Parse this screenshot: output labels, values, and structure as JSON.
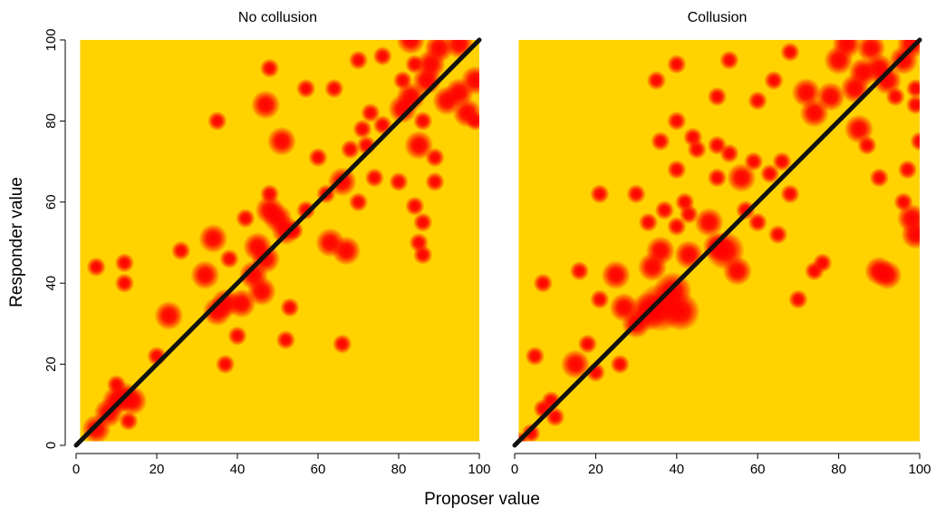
{
  "chart_data": {
    "type": "heatmap",
    "xlabel": "Proposer value",
    "ylabel": "Responder value",
    "xlim": [
      0,
      100
    ],
    "ylim": [
      0,
      100
    ],
    "x_ticks": [
      "0",
      "20",
      "40",
      "60",
      "80",
      "100"
    ],
    "y_ticks": [
      "0",
      "20",
      "40",
      "60",
      "80",
      "100"
    ],
    "colors": {
      "background": "#FFD200",
      "high_density": "#FF0000",
      "diagonal": "#111111"
    },
    "reference_line": {
      "from": [
        0,
        0
      ],
      "to": [
        100,
        100
      ]
    },
    "panels": [
      {
        "title": "No collusion",
        "hotspots": [
          [
            5,
            4,
            3
          ],
          [
            8,
            8,
            3
          ],
          [
            10,
            11,
            3
          ],
          [
            12,
            12,
            3
          ],
          [
            10,
            15,
            2
          ],
          [
            14,
            11,
            3
          ],
          [
            13,
            6,
            2
          ],
          [
            20,
            22,
            2
          ],
          [
            23,
            32,
            3
          ],
          [
            5,
            44,
            2
          ],
          [
            12,
            45,
            2
          ],
          [
            12,
            40,
            2
          ],
          [
            26,
            48,
            2
          ],
          [
            32,
            42,
            3
          ],
          [
            34,
            51,
            3
          ],
          [
            37,
            35,
            3
          ],
          [
            35,
            33,
            3
          ],
          [
            38,
            46,
            2
          ],
          [
            41,
            35,
            3
          ],
          [
            44,
            42,
            3
          ],
          [
            45,
            49,
            3
          ],
          [
            47,
            46,
            3
          ],
          [
            46,
            38,
            3
          ],
          [
            50,
            56,
            3
          ],
          [
            52,
            53,
            3
          ],
          [
            48,
            58,
            3
          ],
          [
            48,
            62,
            2
          ],
          [
            54,
            53,
            2
          ],
          [
            57,
            58,
            2
          ],
          [
            53,
            34,
            2
          ],
          [
            52,
            26,
            2
          ],
          [
            37,
            20,
            2
          ],
          [
            40,
            27,
            2
          ],
          [
            66,
            25,
            2
          ],
          [
            63,
            50,
            3
          ],
          [
            67,
            48,
            3
          ],
          [
            66,
            65,
            3
          ],
          [
            68,
            73,
            2
          ],
          [
            71,
            78,
            2
          ],
          [
            73,
            82,
            2
          ],
          [
            72,
            74,
            2
          ],
          [
            47,
            84,
            3
          ],
          [
            51,
            75,
            3
          ],
          [
            35,
            80,
            2
          ],
          [
            48,
            93,
            2
          ],
          [
            57,
            88,
            2
          ],
          [
            64,
            88,
            2
          ],
          [
            60,
            71,
            2
          ],
          [
            74,
            66,
            2
          ],
          [
            76,
            79,
            2
          ],
          [
            81,
            90,
            2
          ],
          [
            81,
            83,
            3
          ],
          [
            83,
            86,
            3
          ],
          [
            85,
            74,
            3
          ],
          [
            86,
            80,
            2
          ],
          [
            84,
            94,
            2
          ],
          [
            87,
            90,
            3
          ],
          [
            88,
            94,
            3
          ],
          [
            90,
            98,
            3
          ],
          [
            92,
            85,
            3
          ],
          [
            95,
            87,
            3
          ],
          [
            97,
            82,
            3
          ],
          [
            99,
            90,
            3
          ],
          [
            99,
            80,
            2
          ],
          [
            95,
            99,
            3
          ],
          [
            83,
            100,
            3
          ],
          [
            76,
            96,
            2
          ],
          [
            70,
            95,
            2
          ],
          [
            80,
            65,
            2
          ],
          [
            89,
            71,
            2
          ],
          [
            84,
            59,
            2
          ],
          [
            86,
            55,
            2
          ],
          [
            89,
            65,
            2
          ],
          [
            85,
            50,
            2
          ],
          [
            86,
            47,
            2
          ],
          [
            62,
            62,
            2
          ],
          [
            70,
            60,
            2
          ],
          [
            42,
            56,
            2
          ]
        ]
      },
      {
        "title": "Collusion",
        "hotspots": [
          [
            1,
            1,
            2
          ],
          [
            4,
            3,
            2
          ],
          [
            7,
            9,
            2
          ],
          [
            9,
            11,
            2
          ],
          [
            10,
            7,
            2
          ],
          [
            5,
            22,
            2
          ],
          [
            7,
            40,
            2
          ],
          [
            15,
            20,
            3
          ],
          [
            18,
            25,
            2
          ],
          [
            16,
            43,
            2
          ],
          [
            21,
            36,
            2
          ],
          [
            25,
            42,
            3
          ],
          [
            27,
            34,
            3
          ],
          [
            30,
            30,
            3
          ],
          [
            33,
            33,
            4
          ],
          [
            36,
            34,
            5
          ],
          [
            39,
            38,
            4
          ],
          [
            41,
            33,
            4
          ],
          [
            34,
            44,
            3
          ],
          [
            36,
            48,
            3
          ],
          [
            40,
            54,
            2
          ],
          [
            42,
            60,
            2
          ],
          [
            43,
            47,
            3
          ],
          [
            33,
            55,
            2
          ],
          [
            37,
            58,
            2
          ],
          [
            40,
            68,
            2
          ],
          [
            50,
            49,
            3
          ],
          [
            52,
            48,
            4
          ],
          [
            55,
            43,
            3
          ],
          [
            48,
            55,
            3
          ],
          [
            57,
            58,
            2
          ],
          [
            60,
            55,
            2
          ],
          [
            50,
            66,
            2
          ],
          [
            56,
            66,
            3
          ],
          [
            59,
            70,
            2
          ],
          [
            63,
            67,
            2
          ],
          [
            66,
            70,
            2
          ],
          [
            68,
            62,
            2
          ],
          [
            65,
            52,
            2
          ],
          [
            53,
            72,
            2
          ],
          [
            50,
            74,
            2
          ],
          [
            45,
            73,
            2
          ],
          [
            30,
            62,
            2
          ],
          [
            21,
            62,
            2
          ],
          [
            36,
            75,
            2
          ],
          [
            40,
            80,
            2
          ],
          [
            44,
            76,
            2
          ],
          [
            35,
            90,
            2
          ],
          [
            40,
            94,
            2
          ],
          [
            50,
            86,
            2
          ],
          [
            53,
            95,
            2
          ],
          [
            60,
            85,
            2
          ],
          [
            64,
            90,
            2
          ],
          [
            68,
            97,
            2
          ],
          [
            72,
            87,
            3
          ],
          [
            74,
            82,
            3
          ],
          [
            78,
            86,
            3
          ],
          [
            80,
            95,
            3
          ],
          [
            82,
            99,
            3
          ],
          [
            84,
            88,
            3
          ],
          [
            86,
            92,
            3
          ],
          [
            88,
            98,
            3
          ],
          [
            90,
            93,
            3
          ],
          [
            92,
            90,
            3
          ],
          [
            94,
            86,
            2
          ],
          [
            96,
            95,
            3
          ],
          [
            98,
            99,
            3
          ],
          [
            99,
            84,
            2
          ],
          [
            85,
            78,
            3
          ],
          [
            87,
            74,
            2
          ],
          [
            90,
            66,
            2
          ],
          [
            97,
            68,
            2
          ],
          [
            98,
            56,
            3
          ],
          [
            99,
            52,
            3
          ],
          [
            90,
            43,
            3
          ],
          [
            92,
            42,
            3
          ],
          [
            76,
            45,
            2
          ],
          [
            70,
            36,
            2
          ],
          [
            74,
            43,
            2
          ],
          [
            99,
            88,
            2
          ],
          [
            100,
            75,
            2
          ],
          [
            96,
            60,
            2
          ],
          [
            43,
            57,
            2
          ],
          [
            26,
            20,
            2
          ],
          [
            20,
            18,
            2
          ]
        ]
      }
    ]
  }
}
